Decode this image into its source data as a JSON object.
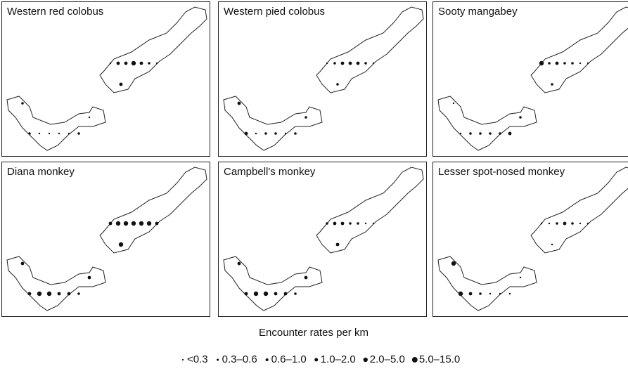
{
  "panels": [
    {
      "title": "Western red colobus"
    },
    {
      "title": "Western pied colobus"
    },
    {
      "title": "Sooty mangabey"
    },
    {
      "title": "Diana monkey"
    },
    {
      "title": "Campbell's monkey"
    },
    {
      "title": "Lesser spot-nosed monkey"
    }
  ],
  "legend": {
    "title": "Encounter rates per km",
    "items": [
      "<0.3",
      "0.3–0.6",
      "0.6–1.0",
      "1.0–2.0",
      "2.0–5.0",
      "5.0–15.0"
    ]
  }
}
